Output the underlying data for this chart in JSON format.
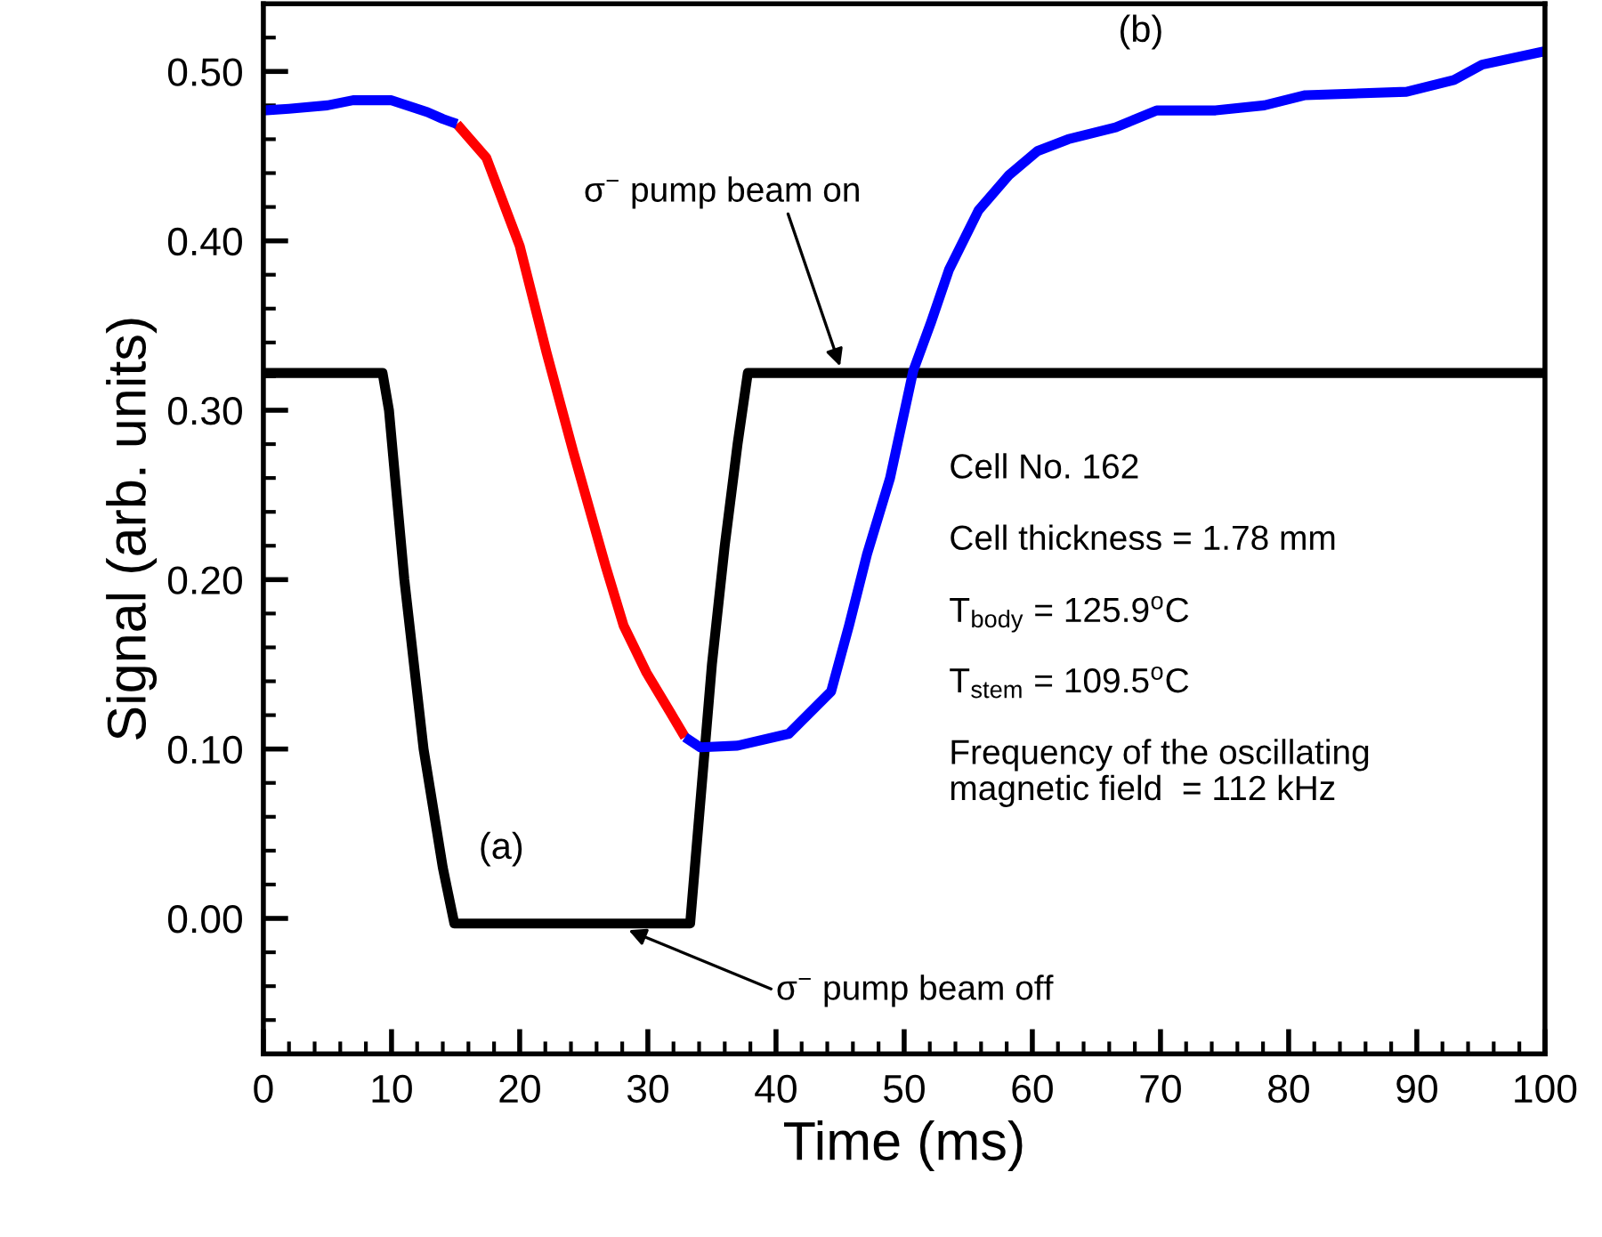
{
  "chart_data": {
    "type": "line",
    "xlabel": "Time (ms)",
    "ylabel": "Signal (arb. units)",
    "xlim": [
      0,
      100
    ],
    "ylim": [
      -0.08,
      0.54
    ],
    "xticks": [
      0,
      10,
      20,
      30,
      40,
      50,
      60,
      70,
      80,
      90,
      100
    ],
    "yticks": [
      {
        "value": 0,
        "label": "0.00"
      },
      {
        "value": 0.1,
        "label": "0.10"
      },
      {
        "value": 0.2,
        "label": "0.20"
      },
      {
        "value": 0.3,
        "label": "0.30"
      },
      {
        "value": 0.4,
        "label": "0.40"
      },
      {
        "value": 0.5,
        "label": "0.50"
      }
    ],
    "grid": false,
    "legend": false,
    "line_style": "solid",
    "series": [
      {
        "color": "#000000",
        "x": [
          0,
          9.3,
          9.8,
          11,
          12.5,
          14,
          14.9,
          33.3,
          34,
          35,
          36,
          37,
          37.8,
          100
        ],
        "values": [
          0.322,
          0.322,
          0.3,
          0.2,
          0.1,
          0.03,
          -0.003,
          -0.003,
          0.06,
          0.15,
          0.22,
          0.28,
          0.322,
          0.322
        ]
      },
      {
        "color": "#ff0000",
        "x": [
          15.1,
          17.4,
          20.0,
          22.1,
          24.2,
          26.7,
          28.1,
          29.9,
          31.8,
          32.9
        ],
        "values": [
          0.469,
          0.449,
          0.397,
          0.334,
          0.275,
          0.208,
          0.173,
          0.145,
          0.121,
          0.107
        ]
      },
      {
        "color": "#0000ff",
        "x": [
          0,
          2,
          5,
          7,
          10,
          12.8,
          14,
          15.1
        ],
        "values": [
          0.477,
          0.478,
          0.48,
          0.483,
          0.483,
          0.476,
          0.472,
          0.469
        ]
      },
      {
        "color": "#0000ff",
        "x": [
          32.9,
          34.1,
          37,
          41,
          44.3,
          45.7,
          47.1,
          48.9,
          50.7,
          52.1,
          53.5,
          55.8,
          58.2,
          60.4,
          62.8,
          66.5,
          69.7,
          74.3,
          78.1,
          81.3,
          89.2,
          92.9,
          95.1,
          100
        ],
        "values": [
          0.107,
          0.101,
          0.102,
          0.109,
          0.134,
          0.173,
          0.215,
          0.26,
          0.323,
          0.352,
          0.383,
          0.418,
          0.439,
          0.453,
          0.46,
          0.467,
          0.477,
          0.477,
          0.48,
          0.486,
          0.488,
          0.495,
          0.504,
          0.512
        ]
      }
    ],
    "annotations": [
      {
        "text": "σ$^{−}$ pump beam on",
        "x": 45,
        "y": 0.326
      },
      {
        "text": "σ$^{−}$ pump beam off",
        "x": 28.5,
        "y": -0.007
      },
      "(a)",
      "(b)",
      "Cell No. 162",
      "Cell thickness = 1.78 mm",
      "T$_{body}$ = 125.9$^{o}$C",
      "T$_{stem}$ = 109.5$^{o}$C",
      "Frequency of the oscillating\nmagnetic field  = 112 kHz"
    ]
  }
}
